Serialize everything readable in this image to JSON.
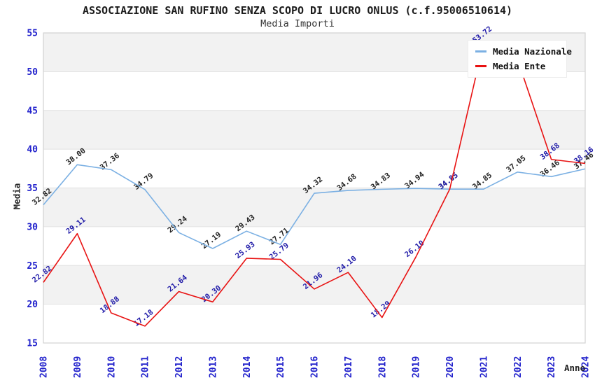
{
  "header": {
    "title": "ASSOCIAZIONE SAN RUFINO SENZA SCOPO DI LUCRO ONLUS (c.f.95006510614)",
    "subtitle": "Media Importi"
  },
  "axes": {
    "y_title": "Media",
    "x_title": "Anno",
    "y_ticks": [
      "15",
      "20",
      "25",
      "30",
      "35",
      "40",
      "45",
      "50",
      "55"
    ],
    "x_ticks": [
      "2008",
      "2009",
      "2010",
      "2011",
      "2012",
      "2013",
      "2014",
      "2015",
      "2016",
      "2017",
      "2018",
      "2019",
      "2020",
      "2021",
      "2022",
      "2023",
      "2024"
    ]
  },
  "legend": {
    "items": [
      {
        "label": "Media Nazionale",
        "color": "#7bb0e3"
      },
      {
        "label": "Media Ente",
        "color": "#e81212"
      }
    ]
  },
  "colors": {
    "band_fill": "#f2f2f2",
    "gridline": "#e1e1e1",
    "plot_border": "#d2d2d2",
    "tick_label": "#2222cc",
    "nazionale_line": "#7bb0e3",
    "nazionale_label": "#222222",
    "ente_line": "#e81212",
    "ente_label": "#1f1aa8"
  },
  "chart_data": {
    "type": "line",
    "title": "ASSOCIAZIONE SAN RUFINO SENZA SCOPO DI LUCRO ONLUS (c.f.95006510614)",
    "subtitle": "Media Importi",
    "xlabel": "Anno",
    "ylabel": "Media",
    "ylim": [
      15,
      55
    ],
    "ytick_step": 5,
    "grid": "horizontal-with-alternating-bands",
    "legend_position": "top-right-inside",
    "categories": [
      2008,
      2009,
      2010,
      2011,
      2012,
      2013,
      2014,
      2015,
      2016,
      2017,
      2018,
      2019,
      2020,
      2021,
      2022,
      2023,
      2024
    ],
    "series": [
      {
        "name": "Media Nazionale",
        "color": "#7bb0e3",
        "label_color": "#222222",
        "values": [
          32.82,
          38.0,
          37.36,
          34.79,
          29.24,
          27.19,
          29.43,
          27.71,
          34.32,
          34.68,
          34.83,
          34.94,
          34.85,
          34.85,
          37.05,
          36.46,
          37.46
        ],
        "labels": [
          "32.82",
          "38.00",
          "37.36",
          "34.79",
          "29.24",
          "27.19",
          "29.43",
          "27.71",
          "34.32",
          "34.68",
          "34.83",
          "34.94",
          "34.85",
          "34.85",
          "37.05",
          "36.46",
          "37.46"
        ]
      },
      {
        "name": "Media Ente",
        "color": "#e81212",
        "label_color": "#1f1aa8",
        "values": [
          22.82,
          29.11,
          18.88,
          17.18,
          21.64,
          20.3,
          25.93,
          25.79,
          21.96,
          24.1,
          18.29,
          26.1,
          34.85,
          53.72,
          51.6,
          38.68,
          38.16
        ],
        "labels": [
          "22.82",
          "29.11",
          "18.88",
          "17.18",
          "21.64",
          "20.30",
          "25.93",
          "25.79",
          "21.96",
          "24.10",
          "18.29",
          "26.10",
          "34.85",
          "53.72",
          "",
          "38.68",
          "38.16"
        ]
      }
    ]
  }
}
